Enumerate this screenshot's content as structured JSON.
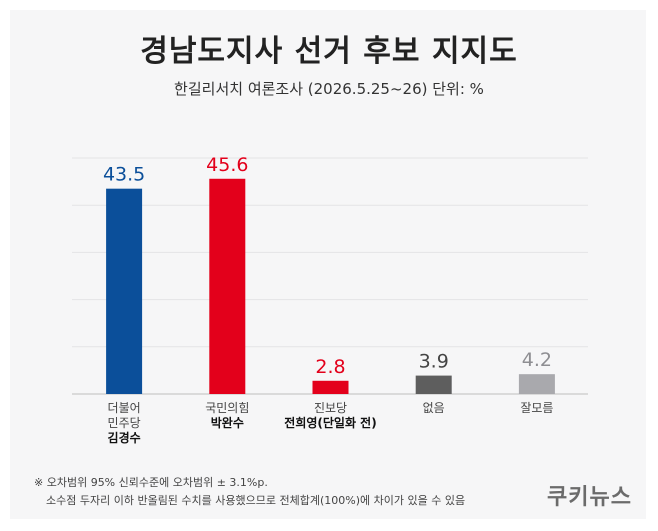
{
  "chart_data": {
    "type": "bar",
    "title": "경남도지사 선거 후보 지지도",
    "subtitle": "한길리서치 여론조사 (2026.5.25~26) 단위: %",
    "ylim": [
      0,
      50
    ],
    "grid": true,
    "categories": [
      {
        "lines": [
          "더불어",
          "민주당"
        ],
        "candidate": "김경수",
        "value": 43.5,
        "color": "#0b4f9a",
        "label_color": "#0b4f9a"
      },
      {
        "lines": [
          "국민의힘"
        ],
        "candidate": "박완수",
        "value": 45.6,
        "color": "#e3001b",
        "label_color": "#e3001b"
      },
      {
        "lines": [
          "진보당"
        ],
        "candidate": "전희영(단일화 전)",
        "value": 2.8,
        "color": "#e3001b",
        "label_color": "#e3001b"
      },
      {
        "lines": [
          "없음"
        ],
        "candidate": "",
        "value": 3.9,
        "color": "#5e5e5e",
        "label_color": "#444444"
      },
      {
        "lines": [
          "잘모름"
        ],
        "candidate": "",
        "value": 4.2,
        "color": "#a9a9ad",
        "label_color": "#8e8e92"
      }
    ]
  },
  "notes": {
    "line1": "※ 오차범위 95% 신뢰수준에 오차범위 ± 3.1%p.",
    "line2": "소수점 두자리 이하 반올림된 수치를 사용했으므로 전체합계(100%)에 차이가 있을 수 있음"
  },
  "logo": "쿠키뉴스"
}
